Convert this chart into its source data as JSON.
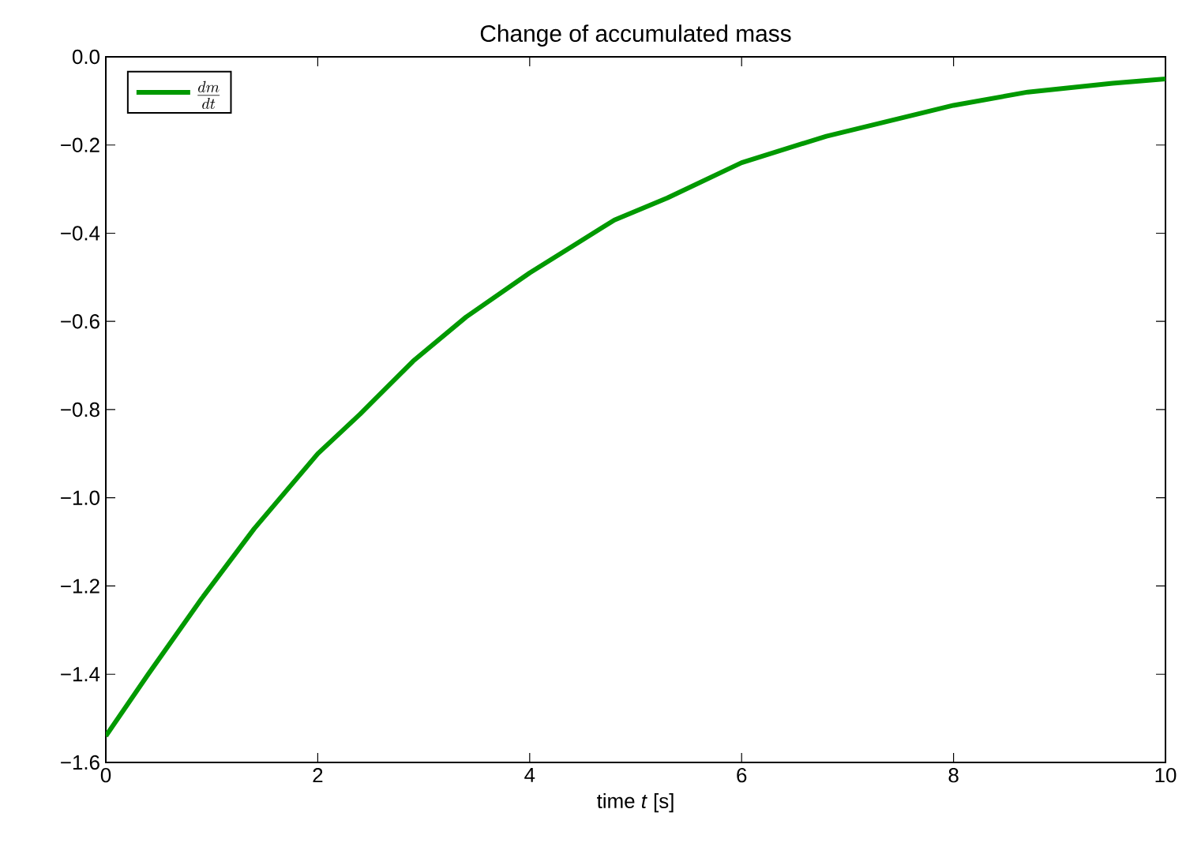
{
  "chart_data": {
    "type": "line",
    "title": "Change of accumulated mass",
    "xlabel": "time *t* [s]",
    "xlim": [
      0,
      10
    ],
    "ylim": [
      -1.6,
      0.0
    ],
    "xticks": [
      0,
      2,
      4,
      6,
      8,
      10
    ],
    "yticks": [
      {
        "value": -1.6,
        "label": "−1.6"
      },
      {
        "value": -1.4,
        "label": "−1.4"
      },
      {
        "value": -1.2,
        "label": "−1.2"
      },
      {
        "value": -1.0,
        "label": "−1.0"
      },
      {
        "value": -0.8,
        "label": "−0.8"
      },
      {
        "value": -0.6,
        "label": "−0.6"
      },
      {
        "value": -0.4,
        "label": "−0.4"
      },
      {
        "value": -0.2,
        "label": "−0.2"
      },
      {
        "value": 0.0,
        "label": "0.0"
      }
    ],
    "legend": "top left",
    "grid": false,
    "marker": "none",
    "line_style": "solid",
    "series": [
      {
        "name": "\\frac{dm}{dt}",
        "color": "#009900",
        "x": [
          0,
          0.4,
          0.9,
          1.4,
          2,
          2.4,
          2.9,
          3.4,
          4,
          4.4,
          4.8,
          5.3,
          6,
          6.8,
          8,
          8.7,
          9.5,
          10
        ],
        "values": [
          -1.54,
          -1.4,
          -1.23,
          -1.07,
          -0.9,
          -0.81,
          -0.69,
          -0.59,
          -0.49,
          -0.43,
          -0.37,
          -0.32,
          -0.24,
          -0.18,
          -0.11,
          -0.08,
          -0.06,
          -0.05
        ]
      }
    ]
  }
}
